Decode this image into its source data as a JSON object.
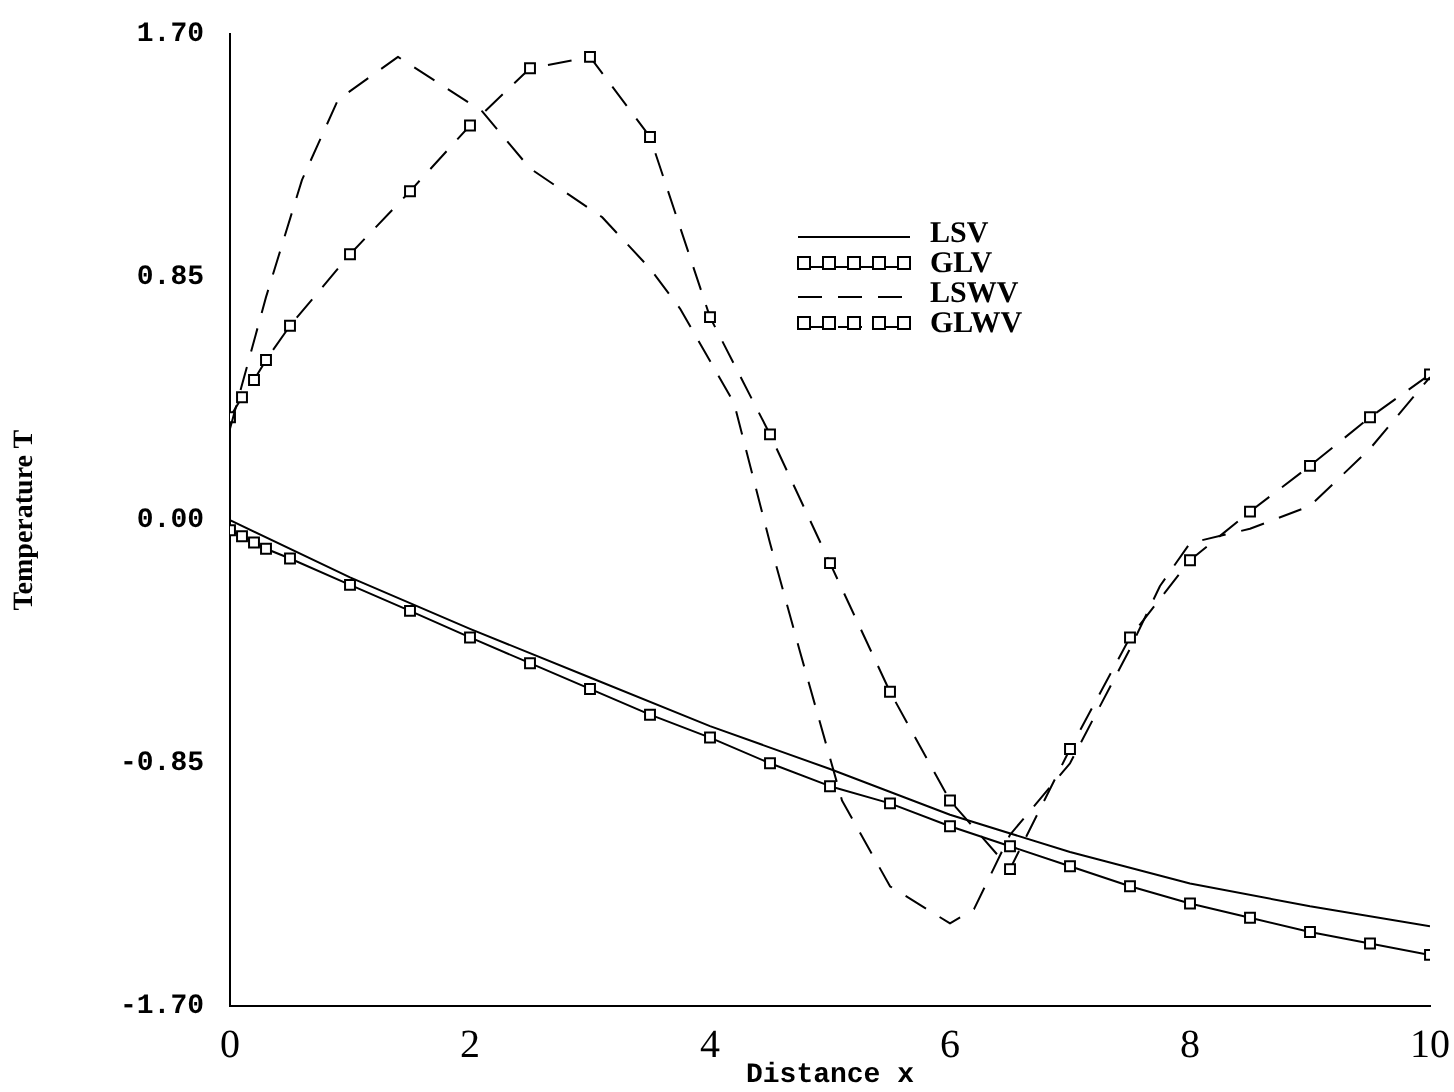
{
  "chart_data": {
    "type": "line",
    "xlabel": "Distance x",
    "ylabel": "Temperature T",
    "xlim": [
      0,
      10
    ],
    "xticks": [
      0,
      2,
      4,
      6,
      8,
      10
    ],
    "ylim": [
      -1.7,
      1.7
    ],
    "yticks": [
      {
        "value": 1.7,
        "label": "1.70"
      },
      {
        "value": 0.85,
        "label": "0.85"
      },
      {
        "value": 0,
        "label": "0.00"
      },
      {
        "value": -0.85,
        "label": "-0.85"
      },
      {
        "value": -1.7,
        "label": "-1.70"
      }
    ],
    "legend": "top",
    "series": [
      {
        "name": "LSV",
        "color": "#000000",
        "marker": "none",
        "line_style": "solid",
        "x": [
          0,
          1,
          2,
          3,
          4,
          5,
          6,
          7,
          8,
          9,
          10
        ],
        "values": [
          0,
          -0.2,
          -0.38,
          -0.55,
          -0.72,
          -0.87,
          -1.03,
          -1.16,
          -1.27,
          -1.35,
          -1.42
        ]
      },
      {
        "name": "GLV",
        "color": "#000000",
        "marker": "square",
        "line_style": "solid",
        "x": [
          0,
          0.1,
          0.2,
          0.3,
          0.5,
          1,
          1.5,
          2,
          2.5,
          3,
          3.5,
          4,
          4.5,
          5,
          5.5,
          6,
          6.5,
          7,
          7.5,
          8,
          8.5,
          9,
          9.5,
          10
        ],
        "values": [
          -0.035,
          -0.056,
          -0.078,
          -0.1,
          -0.134,
          -0.226,
          -0.317,
          -0.41,
          -0.5,
          -0.59,
          -0.68,
          -0.76,
          -0.85,
          -0.93,
          -0.99,
          -1.07,
          -1.14,
          -1.21,
          -1.28,
          -1.34,
          -1.39,
          -1.44,
          -1.48,
          -1.52
        ]
      },
      {
        "name": "LSWV",
        "color": "#000000",
        "marker": "none",
        "line_style": "dashed",
        "x": [
          0,
          0.3,
          0.6,
          0.9,
          1.4,
          2.1,
          2.5,
          3.1,
          3.5,
          3.75,
          4.2,
          4.5,
          4.75,
          5.1,
          5.5,
          6,
          6.2,
          6.5,
          7,
          7.25,
          7.5,
          7.75,
          8,
          8.5,
          9,
          9.5,
          10
        ],
        "values": [
          0.32,
          0.78,
          1.19,
          1.47,
          1.62,
          1.43,
          1.23,
          1.06,
          0.88,
          0.74,
          0.41,
          -0.08,
          -0.46,
          -0.98,
          -1.28,
          -1.41,
          -1.36,
          -1.1,
          -0.85,
          -0.65,
          -0.45,
          -0.23,
          -0.08,
          -0.03,
          0.05,
          0.25,
          0.5
        ]
      },
      {
        "name": "GLWV",
        "color": "#000000",
        "marker": "square",
        "line_style": "dashed",
        "x": [
          0,
          0.1,
          0.2,
          0.3,
          0.5,
          1,
          1.5,
          2,
          2.5,
          3,
          3.5,
          4,
          4.5,
          5,
          5.5,
          6,
          6.5,
          7,
          7.5,
          8,
          8.5,
          9,
          9.5,
          10
        ],
        "values": [
          0.36,
          0.43,
          0.49,
          0.56,
          0.68,
          0.93,
          1.15,
          1.38,
          1.58,
          1.62,
          1.34,
          0.71,
          0.3,
          -0.15,
          -0.6,
          -0.98,
          -1.22,
          -0.8,
          -0.41,
          -0.14,
          0.03,
          0.19,
          0.36,
          0.51
        ]
      }
    ]
  }
}
